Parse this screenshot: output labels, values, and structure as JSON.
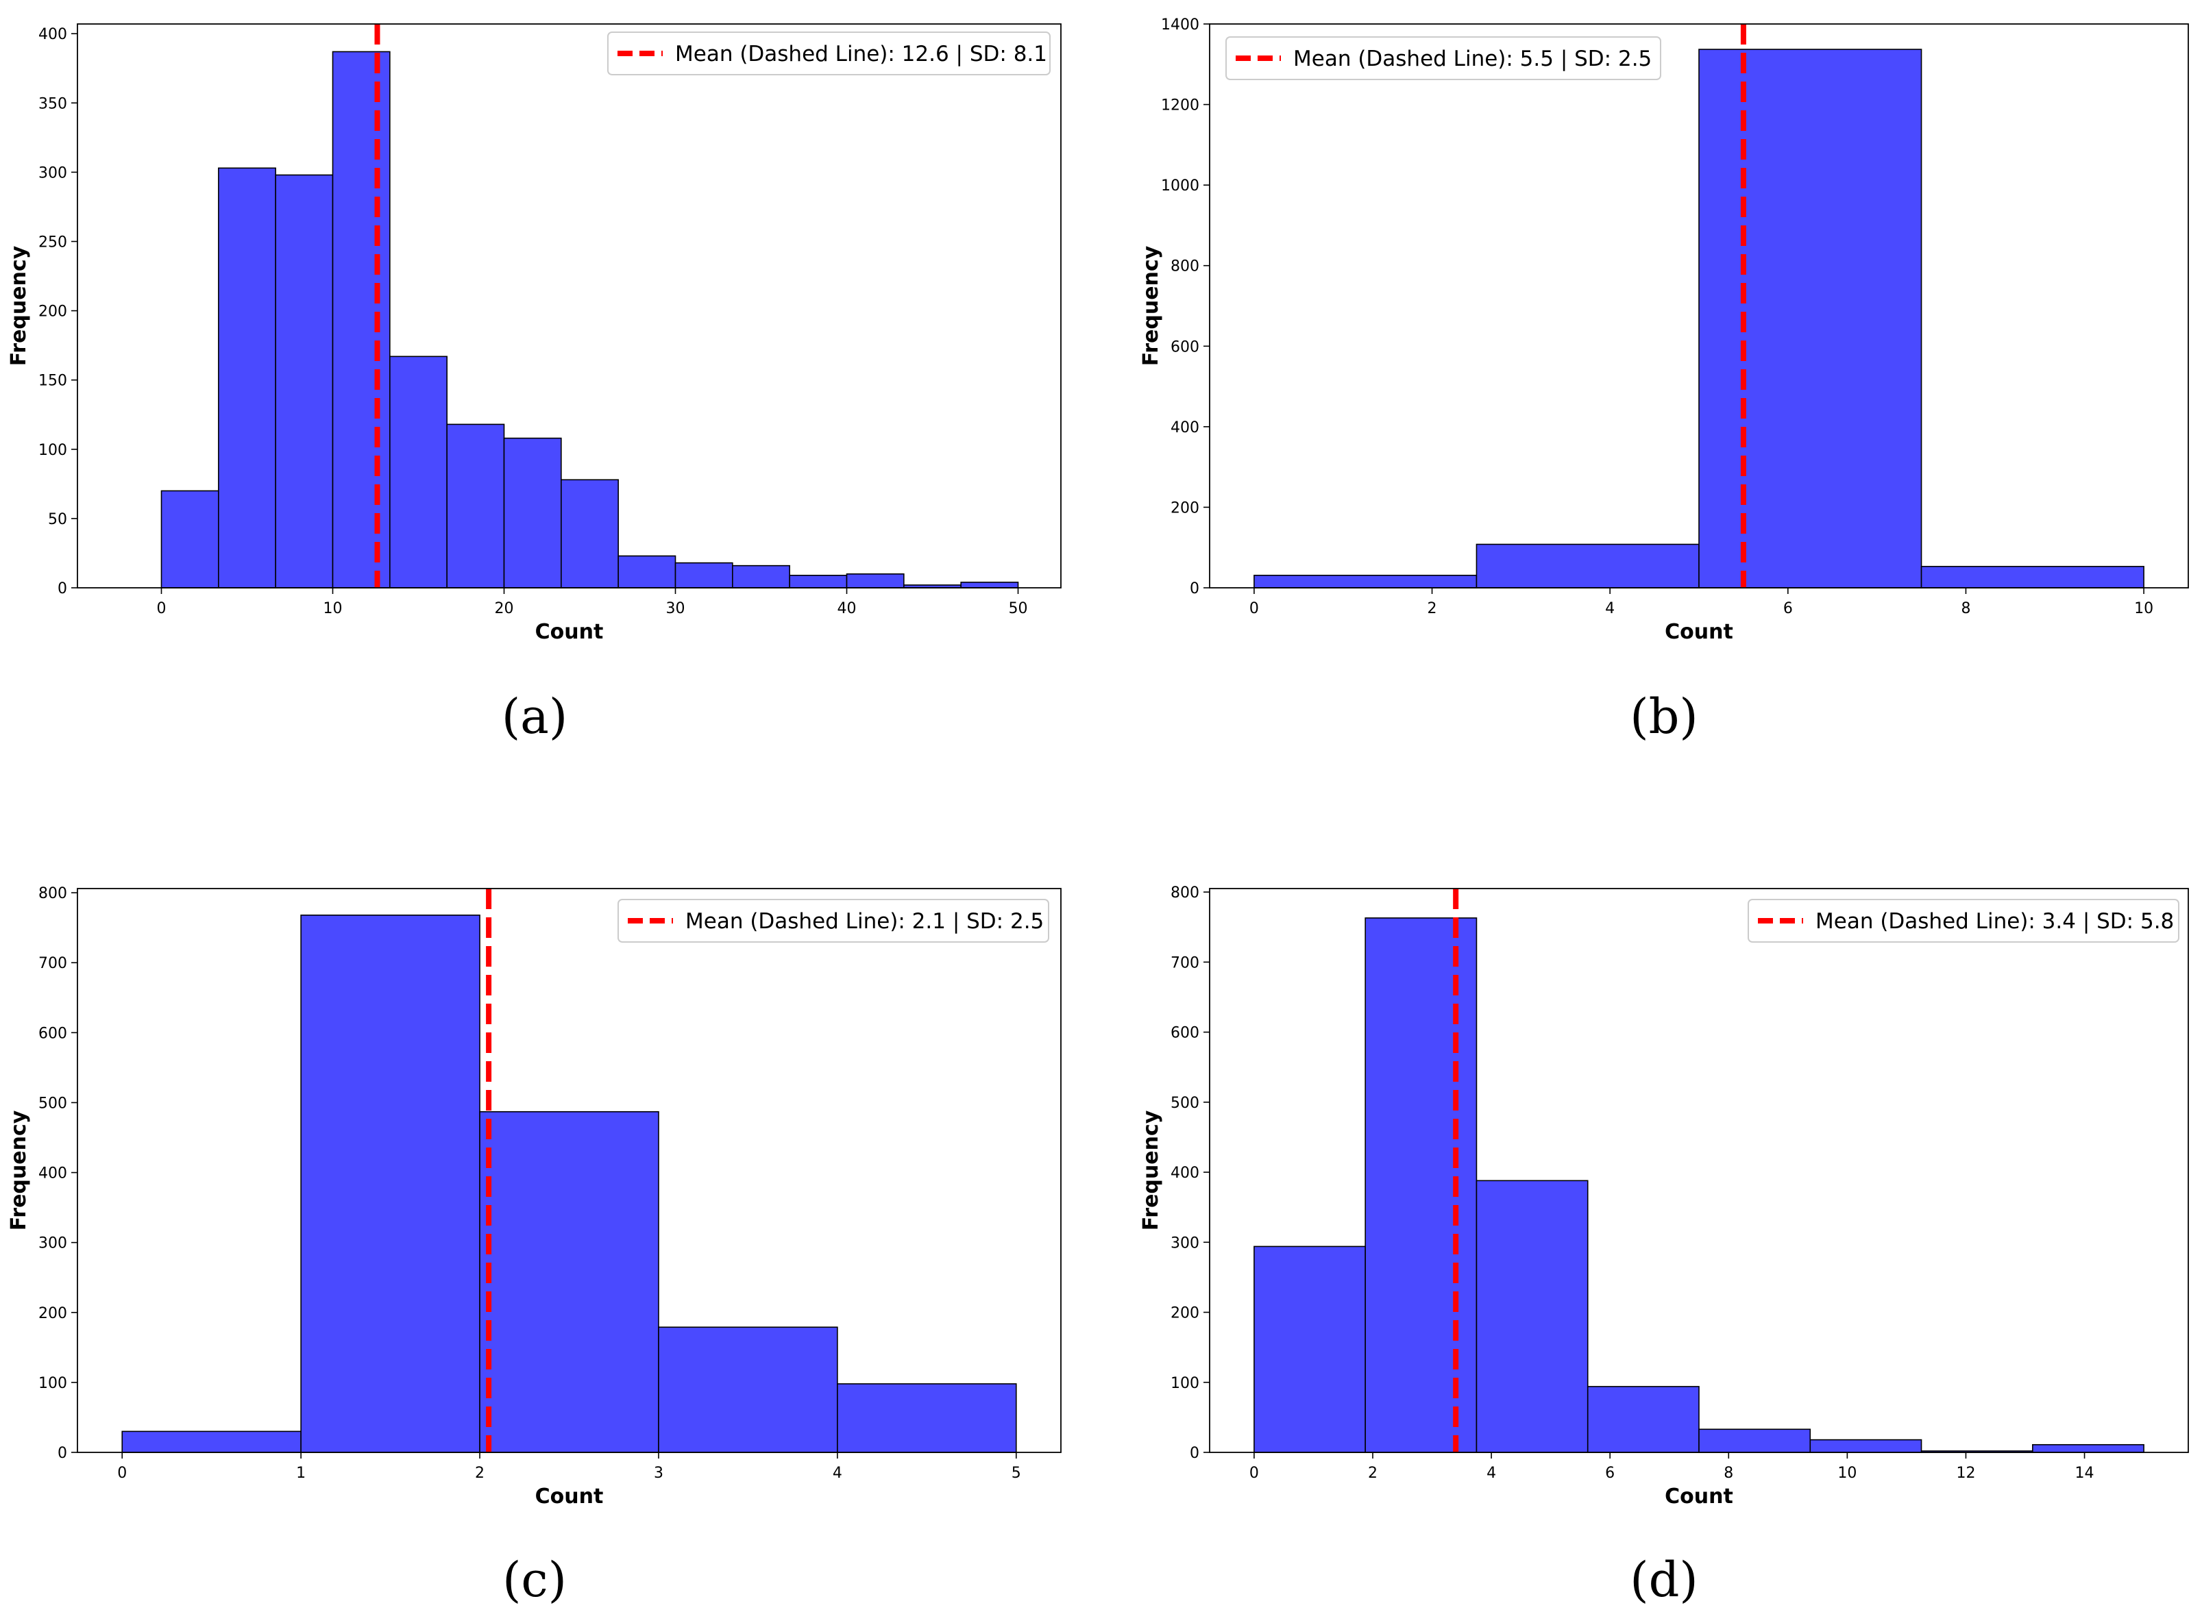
{
  "colors": {
    "bar_fill": "#4a4aff",
    "bar_edge": "#000000",
    "mean_line": "#ff0000",
    "axes": "#000000",
    "background": "#ffffff"
  },
  "chart_data": [
    {
      "type": "bar",
      "panel_label": "(a)",
      "xlabel": "Count",
      "ylabel": "Frequency",
      "xlim": [
        -4.9,
        52.5
      ],
      "ylim": [
        0,
        407
      ],
      "xticks": [
        0,
        10,
        20,
        30,
        40,
        50
      ],
      "yticks": [
        0,
        50,
        100,
        150,
        200,
        250,
        300,
        350,
        400
      ],
      "bin_edges": [
        0,
        3.3333,
        6.6667,
        10,
        13.3333,
        16.6667,
        20,
        23.3333,
        26.6667,
        30,
        33.3333,
        36.6667,
        40,
        43.3333,
        46.6667,
        50
      ],
      "values": [
        70,
        303,
        298,
        387,
        167,
        118,
        108,
        78,
        23,
        18,
        16,
        9,
        10,
        2,
        4
      ],
      "mean": 12.6,
      "sd": 8.1,
      "legend_label": "Mean (Dashed Line): 12.6 | SD: 8.1",
      "legend_loc": "top-right"
    },
    {
      "type": "bar",
      "panel_label": "(b)",
      "xlabel": "Count",
      "ylabel": "Frequency",
      "xlim": [
        -0.5,
        10.5
      ],
      "ylim": [
        0,
        1400
      ],
      "xticks": [
        0,
        2,
        4,
        6,
        8,
        10
      ],
      "yticks": [
        0,
        200,
        400,
        600,
        800,
        1000,
        1200,
        1400
      ],
      "bin_edges": [
        0,
        2.5,
        5,
        7.5,
        10
      ],
      "values": [
        31,
        108,
        1337,
        53
      ],
      "mean": 5.5,
      "sd": 2.5,
      "legend_label": "Mean (Dashed Line): 5.5 | SD: 2.5",
      "legend_loc": "top-left"
    },
    {
      "type": "bar",
      "panel_label": "(c)",
      "xlabel": "Count",
      "ylabel": "Frequency",
      "xlim": [
        -0.25,
        5.25
      ],
      "ylim": [
        0,
        806
      ],
      "xticks": [
        0,
        1,
        2,
        3,
        4,
        5
      ],
      "yticks": [
        0,
        100,
        200,
        300,
        400,
        500,
        600,
        700,
        800
      ],
      "bin_edges": [
        0,
        1,
        2,
        3,
        4,
        5
      ],
      "values": [
        30,
        768,
        487,
        179,
        98
      ],
      "mean": 2.05,
      "sd": 2.5,
      "legend_label": "Mean (Dashed Line): 2.1 | SD: 2.5",
      "legend_loc": "top-right"
    },
    {
      "type": "bar",
      "panel_label": "(d)",
      "xlabel": "Count",
      "ylabel": "Frequency",
      "xlim": [
        -0.75,
        15.75
      ],
      "ylim": [
        0,
        805
      ],
      "xticks": [
        0,
        2,
        4,
        6,
        8,
        10,
        12,
        14
      ],
      "yticks": [
        0,
        100,
        200,
        300,
        400,
        500,
        600,
        700,
        800
      ],
      "bin_edges": [
        0,
        1.875,
        3.75,
        5.625,
        7.5,
        9.375,
        11.25,
        13.125,
        15
      ],
      "values": [
        294,
        763,
        388,
        94,
        33,
        18,
        2,
        11
      ],
      "mean": 3.4,
      "sd": 5.8,
      "legend_label": "Mean (Dashed Line): 3.4 | SD: 5.8",
      "legend_loc": "top-right"
    }
  ]
}
